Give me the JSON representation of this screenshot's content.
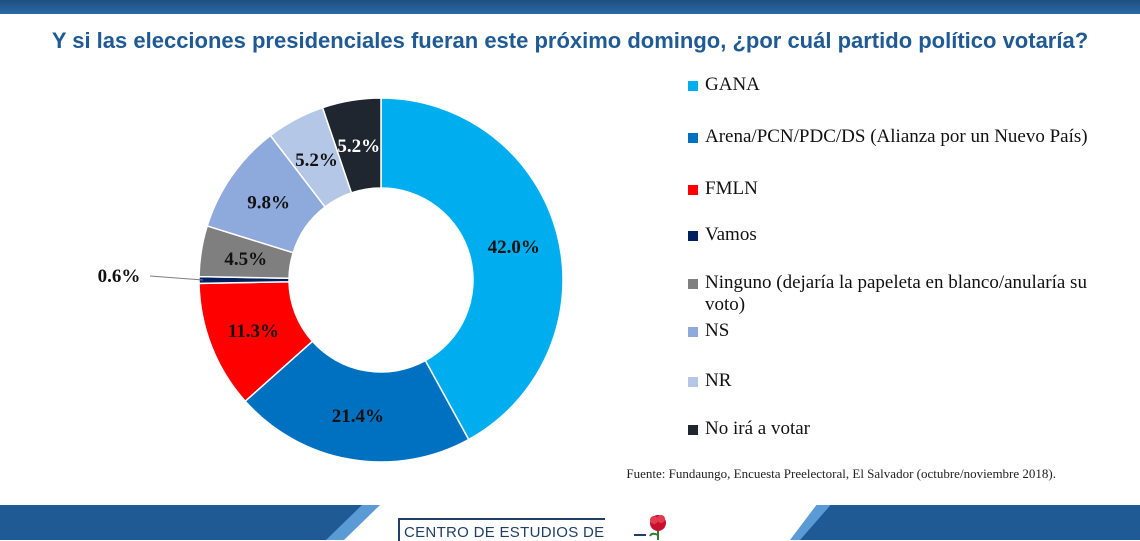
{
  "title": "Y si las elecciones presidenciales fueran este próximo domingo, ¿por cuál partido político votaría?",
  "source": "Fuente: Fundaungo, Encuesta Preelectoral, El Salvador (octubre/noviembre 2018).",
  "footer": {
    "org_name": "CENTRO DE ESTUDIOS DE"
  },
  "colors": {
    "title": "#1f5a95",
    "brand_bar": "#1f5a95",
    "brand_accent": "#5a9bd5"
  },
  "chart_data": {
    "type": "pie",
    "donut": true,
    "series": [
      {
        "name": "GANA",
        "value": 42.0,
        "label": "42.0%",
        "color": "#00aeef",
        "label_color": "#111111"
      },
      {
        "name": "Arena/PCN/PDC/DS (Alianza por un Nuevo País)",
        "value": 21.4,
        "label": "21.4%",
        "color": "#0070c0",
        "label_color": "#111111"
      },
      {
        "name": "FMLN",
        "value": 11.3,
        "label": "11.3%",
        "color": "#ff0000",
        "label_color": "#111111"
      },
      {
        "name": "Vamos",
        "value": 0.6,
        "label": "0.6%",
        "color": "#002060",
        "label_color": "#111111"
      },
      {
        "name": "Ninguno (dejaría la papeleta en blanco/anularía su voto)",
        "value": 4.5,
        "label": "4.5%",
        "color": "#7f7f7f",
        "label_color": "#111111"
      },
      {
        "name": "NS",
        "value": 9.8,
        "label": "9.8%",
        "color": "#8ea9db",
        "label_color": "#111111"
      },
      {
        "name": "NR",
        "value": 5.2,
        "label": "5.2%",
        "color": "#b4c7e7",
        "label_color": "#111111"
      },
      {
        "name": "No irá a votar",
        "value": 5.2,
        "label": "5.2%",
        "color": "#1f2630",
        "label_color": "#ffffff"
      }
    ],
    "legend_placement": "right"
  }
}
